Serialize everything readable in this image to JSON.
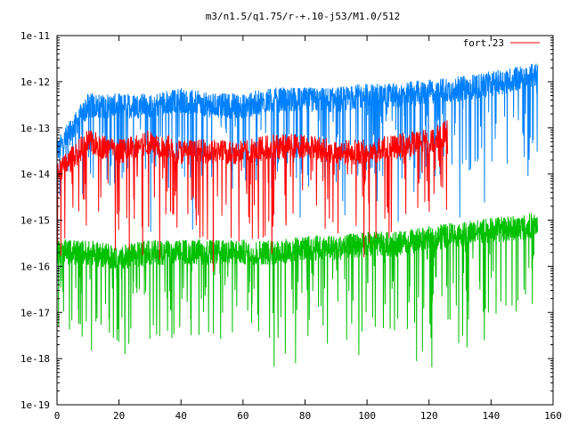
{
  "chart_data": {
    "type": "line",
    "title": "m3/n1.5/q1.75/r-+.10-j53/M1.0/512",
    "xlabel": "",
    "ylabel": "",
    "xlim": [
      0,
      160
    ],
    "ylim": [
      1e-19,
      1e-11
    ],
    "yscale": "log",
    "grid": false,
    "legend_position": "top-right",
    "x_ticks": [
      0,
      20,
      40,
      60,
      80,
      100,
      120,
      140,
      160
    ],
    "x_tick_labels": [
      "0",
      "20",
      "40",
      "60",
      "80",
      "100",
      "120",
      "140",
      "160"
    ],
    "y_ticks": [
      1e-19,
      1e-18,
      1e-17,
      1e-16,
      1e-15,
      1e-14,
      1e-13,
      1e-12,
      1e-11
    ],
    "y_tick_labels": [
      "1e-19",
      "1e-18",
      "1e-17",
      "1e-16",
      "1e-15",
      "1e-14",
      "1e-13",
      "1e-12",
      "1e-11"
    ],
    "series": [
      {
        "legend": "",
        "color": "#0080ff",
        "x_end": 155,
        "x": [
          0,
          10,
          20,
          30,
          40,
          50,
          60,
          70,
          80,
          90,
          100,
          110,
          120,
          130,
          140,
          150,
          155
        ],
        "y": [
          3e-14,
          3e-13,
          3e-13,
          3e-13,
          4e-13,
          3e-13,
          3e-13,
          4e-13,
          4e-13,
          4e-13,
          5e-13,
          5e-13,
          6e-13,
          7e-13,
          9e-13,
          1.2e-12,
          1.5e-12
        ]
      },
      {
        "legend": "fort.23",
        "color": "#ff0000",
        "x_end": 126,
        "x": [
          0,
          10,
          20,
          30,
          40,
          50,
          60,
          70,
          80,
          90,
          100,
          110,
          120,
          126
        ],
        "y": [
          1e-14,
          5e-14,
          3e-14,
          5e-14,
          3e-14,
          3e-14,
          3e-14,
          4e-14,
          4e-14,
          3e-14,
          3e-14,
          4e-14,
          5e-14,
          8e-14
        ]
      },
      {
        "legend": "",
        "color": "#00c000",
        "x_end": 155,
        "x": [
          0,
          10,
          20,
          30,
          40,
          50,
          60,
          70,
          80,
          90,
          100,
          110,
          120,
          130,
          140,
          150,
          155
        ],
        "y": [
          2e-16,
          2e-16,
          1.5e-16,
          2e-16,
          2e-16,
          2e-16,
          2e-16,
          2e-16,
          2.5e-16,
          2.5e-16,
          3e-16,
          3e-16,
          4e-16,
          5e-16,
          6e-16,
          7e-16,
          8e-16
        ]
      }
    ]
  }
}
